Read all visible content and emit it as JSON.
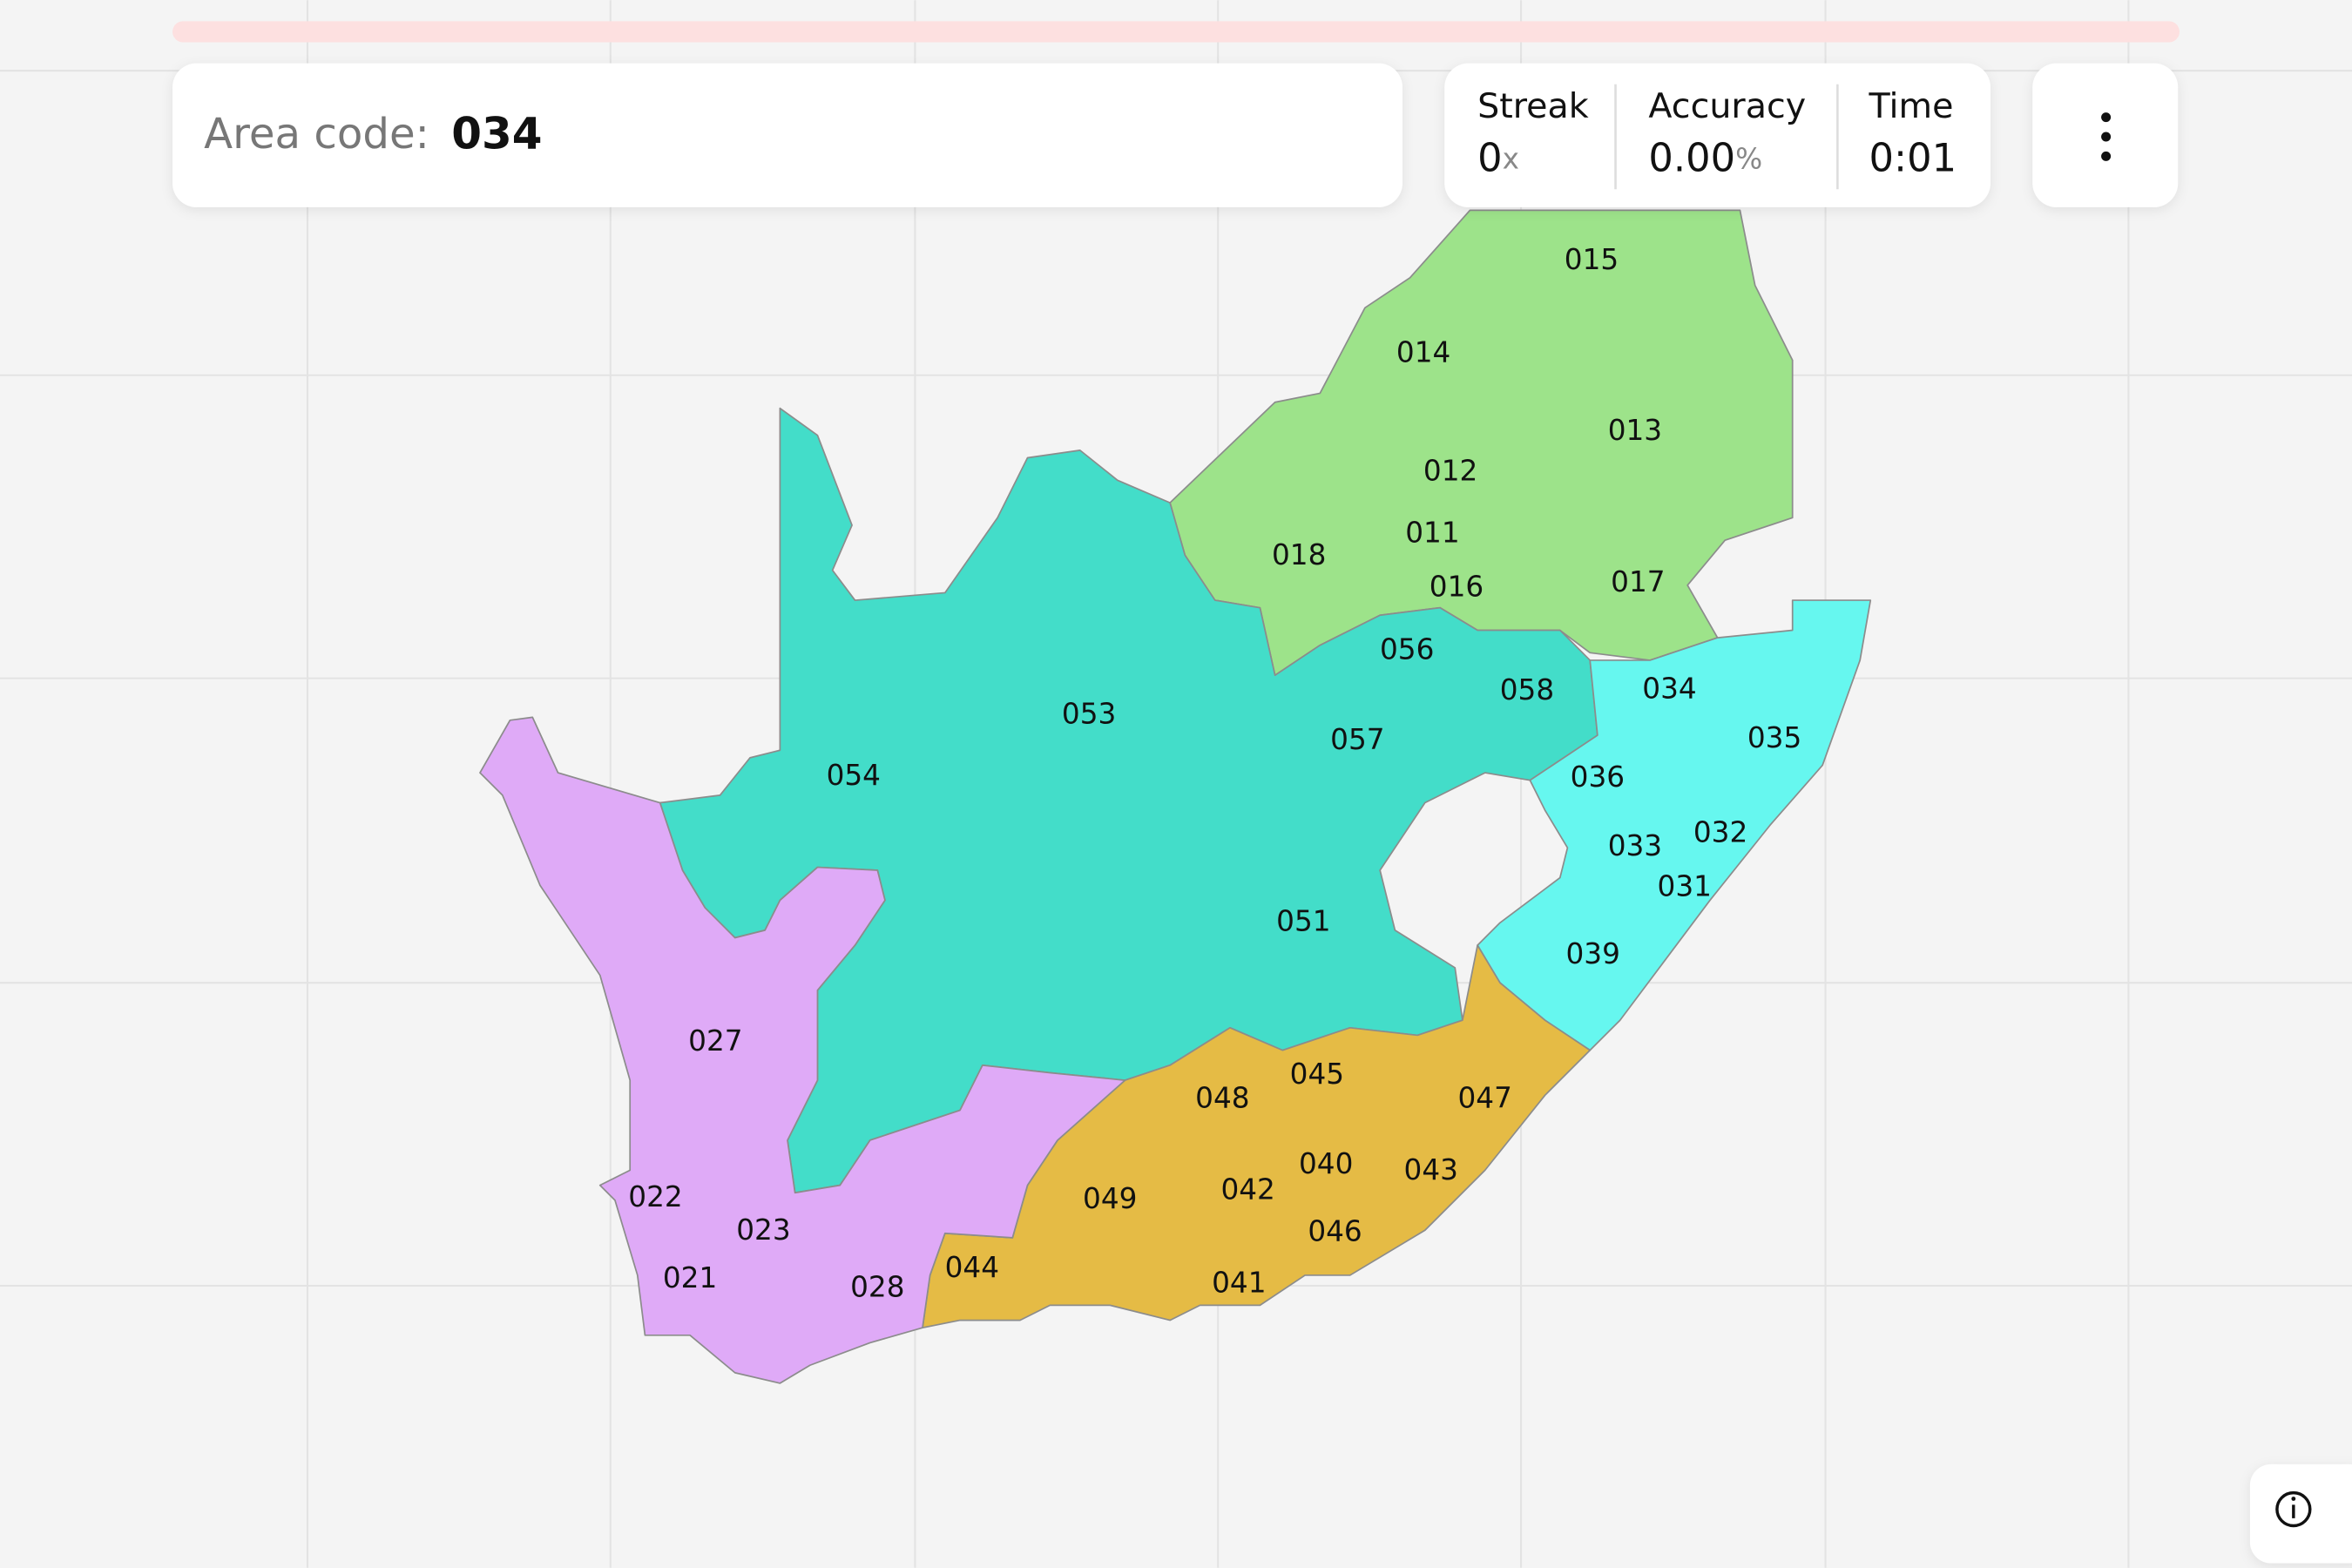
{
  "header": {
    "prompt_label": "Area code:",
    "prompt_value": "034"
  },
  "stats": [
    {
      "label": "Streak",
      "value": "0",
      "unit": "x"
    },
    {
      "label": "Accuracy",
      "value": "0.00",
      "unit": "%"
    },
    {
      "label": "Time",
      "value": "0:01"
    }
  ],
  "map": {
    "labels": [
      "015",
      "014",
      "013",
      "012",
      "011",
      "018",
      "016",
      "017",
      "056",
      "058",
      "034",
      "035",
      "057",
      "053",
      "054",
      "036",
      "032",
      "033",
      "031",
      "051",
      "039",
      "027",
      "045",
      "047",
      "048",
      "040",
      "043",
      "042",
      "049",
      "022",
      "023",
      "046",
      "021",
      "028",
      "044",
      "041"
    ]
  }
}
